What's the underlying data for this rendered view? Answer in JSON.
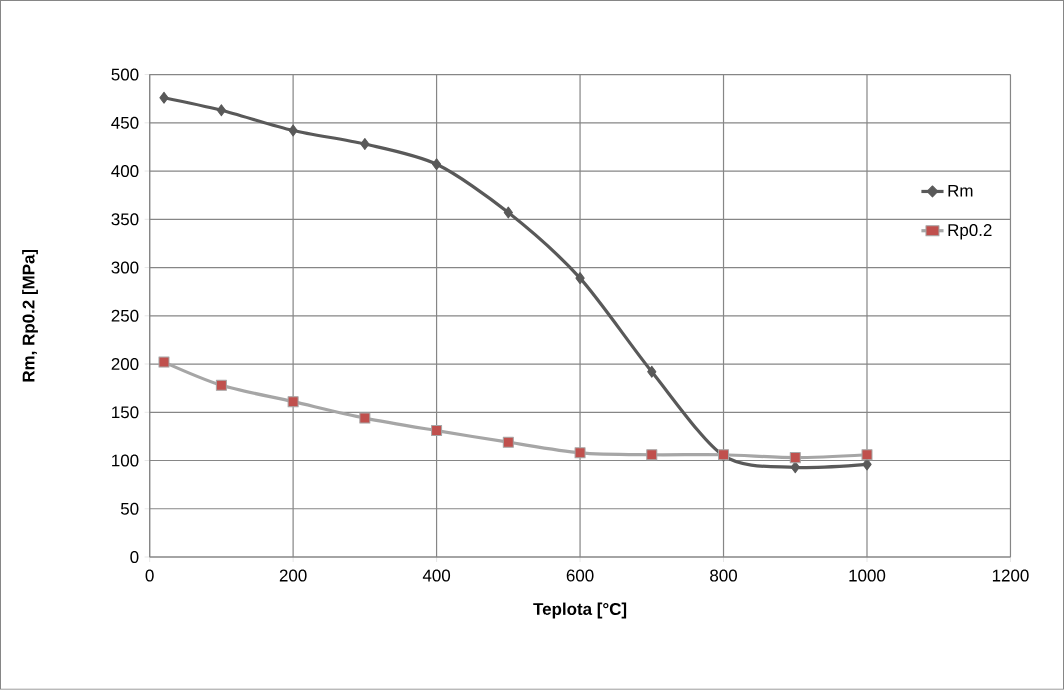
{
  "chart_data": {
    "type": "line",
    "xlabel": "Teplota [°C]",
    "ylabel": "Rm, Rp0.2 [MPa]",
    "xlim": [
      0,
      1200
    ],
    "xticks": [
      0,
      200,
      400,
      600,
      800,
      1000,
      1200
    ],
    "ylim": [
      0,
      500
    ],
    "yticks": [
      0,
      50,
      100,
      150,
      200,
      250,
      300,
      350,
      400,
      450,
      500
    ],
    "grid": true,
    "legend": "right",
    "series": [
      {
        "name": "Rm",
        "color": "#595959",
        "marker": "diamond",
        "x": [
          20,
          100,
          200,
          300,
          400,
          500,
          600,
          700,
          800,
          900,
          1000
        ],
        "values": [
          476,
          463,
          442,
          428,
          407,
          357,
          289,
          192,
          105,
          93,
          96
        ]
      },
      {
        "name": "Rp0.2",
        "color": "#a6a6a6",
        "colors": [
          "#c0504d",
          "#c0504d",
          "#c0504d",
          "#c0504d",
          "#c0504d",
          "#c0504d",
          "#c0504d",
          "#c0504d",
          "#c0504d",
          "#c0504d",
          "#c0504d"
        ],
        "marker": "square",
        "x": [
          20,
          100,
          200,
          300,
          400,
          500,
          600,
          700,
          800,
          900,
          1000
        ],
        "values": [
          202,
          178,
          161,
          144,
          131,
          119,
          108,
          106,
          106,
          103,
          106
        ]
      }
    ]
  }
}
